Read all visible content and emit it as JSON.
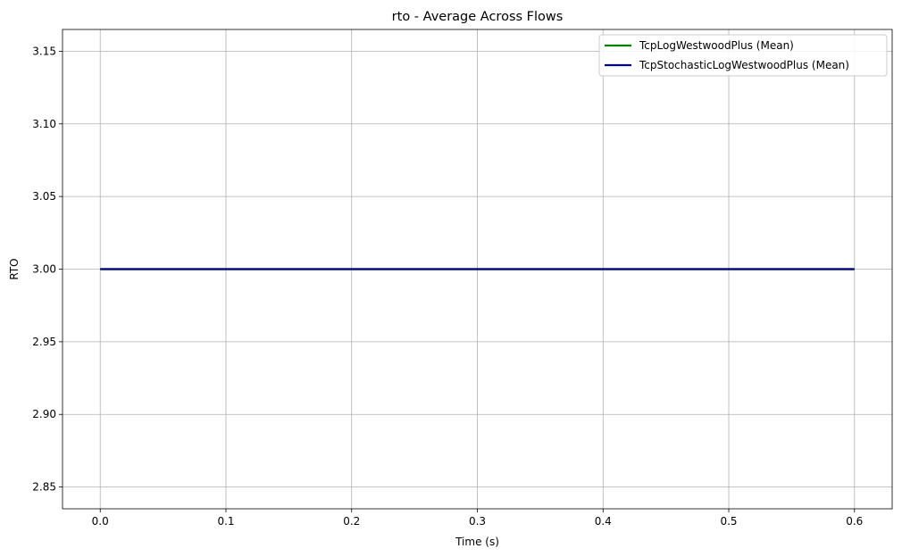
{
  "chart_data": {
    "type": "line",
    "title": "rto - Average Across Flows",
    "xlabel": "Time (s)",
    "ylabel": "RTO",
    "xlim": [
      -0.03,
      0.63
    ],
    "ylim": [
      2.835,
      3.165
    ],
    "xticks": [
      0.0,
      0.1,
      0.2,
      0.3,
      0.4,
      0.5,
      0.6
    ],
    "xtick_labels": [
      "0.0",
      "0.1",
      "0.2",
      "0.3",
      "0.4",
      "0.5",
      "0.6"
    ],
    "yticks": [
      2.85,
      2.9,
      2.95,
      3.0,
      3.05,
      3.1,
      3.15
    ],
    "ytick_labels": [
      "2.85",
      "2.90",
      "2.95",
      "3.00",
      "3.05",
      "3.10",
      "3.15"
    ],
    "grid": true,
    "legend_position": "top-right",
    "series": [
      {
        "name": "TcpLogWestwoodPlus (Mean)",
        "color": "#008000",
        "x": [
          0.0,
          0.6
        ],
        "y": [
          3.0,
          3.0
        ]
      },
      {
        "name": "TcpStochasticLogWestwoodPlus (Mean)",
        "color": "#000080",
        "x": [
          0.0,
          0.6
        ],
        "y": [
          3.0,
          3.0
        ]
      }
    ]
  }
}
